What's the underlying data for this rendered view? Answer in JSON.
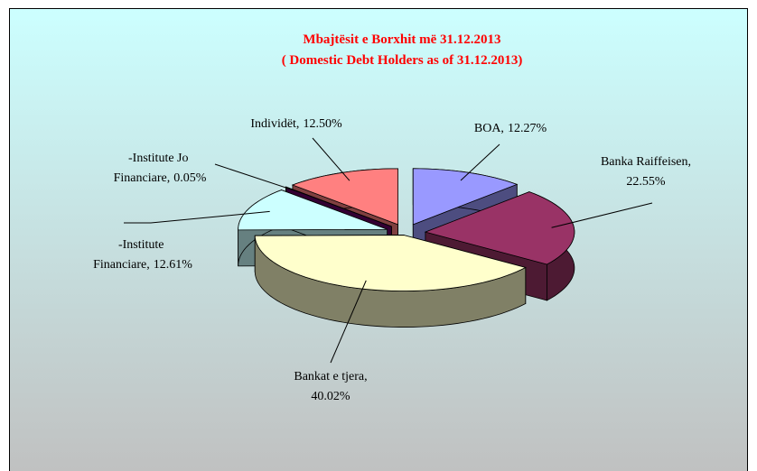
{
  "chart_data": {
    "type": "pie3d",
    "title": "Mbajtësit e Borxhit më 31.12.2013",
    "subtitle": "( Domestic Debt Holders as of  31.12.2013)",
    "categories": [
      "BOA,",
      "Banka Raiffeisen,",
      "Bankat e tjera,",
      "-Institute Financiare,",
      "-Institute Jo Financiare,",
      "Individët,"
    ],
    "values": [
      12.27,
      22.55,
      40.02,
      12.61,
      0.05,
      12.5
    ],
    "value_labels": [
      "12.27%",
      "22.55%",
      "40.02%",
      "12.61%",
      "0.05%",
      "12.50%"
    ],
    "colors": [
      "#9999ff",
      "#993366",
      "#ffffcc",
      "#ccffff",
      "#660066",
      "#ff8080"
    ]
  }
}
